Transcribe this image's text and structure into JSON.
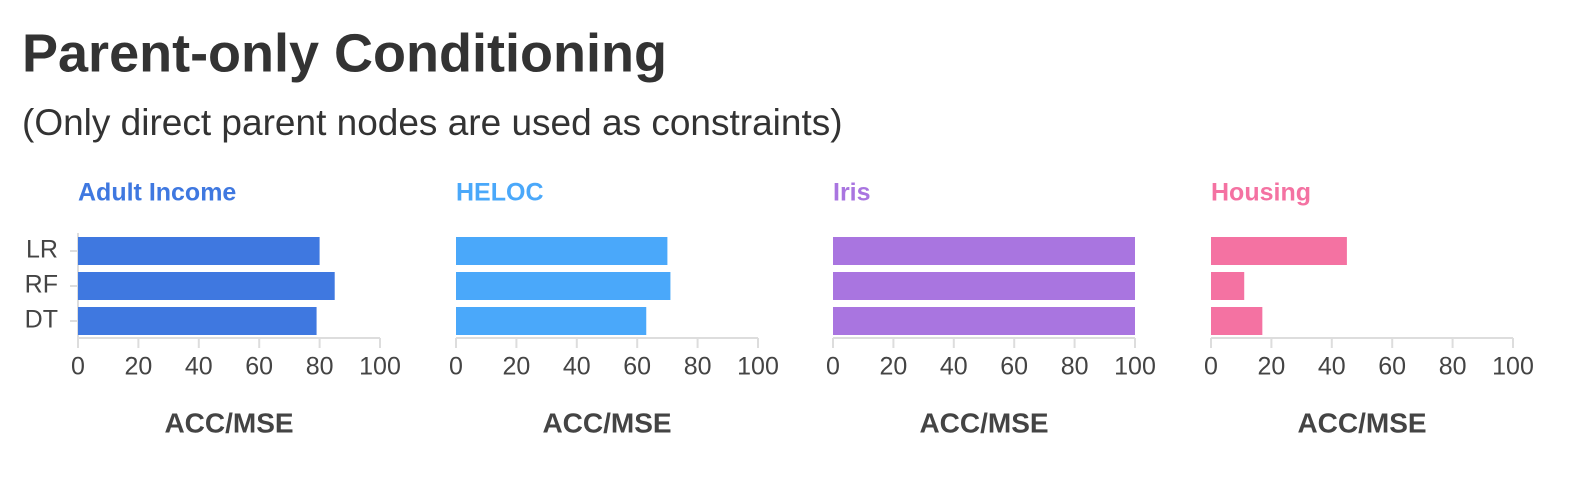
{
  "title": "Parent-only Conditioning",
  "subtitle": "(Only direct parent nodes are used as constraints)",
  "chart_data": [
    {
      "type": "hbar",
      "title": "Adult Income",
      "color": "#3f78e0",
      "categories": [
        "LR",
        "RF",
        "DT"
      ],
      "values": [
        80,
        85,
        79
      ],
      "xlim": [
        0,
        100
      ],
      "xticks": [
        0,
        20,
        40,
        60,
        80,
        100
      ],
      "xlabel": "ACC/MSE"
    },
    {
      "type": "hbar",
      "title": "HELOC",
      "color": "#4aa8fa",
      "values": [
        70,
        71,
        63
      ],
      "xlim": [
        0,
        100
      ],
      "xticks": [
        0,
        20,
        40,
        60,
        80,
        100
      ],
      "xlabel": "ACC/MSE"
    },
    {
      "type": "hbar",
      "title": "Iris",
      "color": "#a975e0",
      "values": [
        100,
        100,
        100
      ],
      "xlim": [
        0,
        100
      ],
      "xticks": [
        0,
        20,
        40,
        60,
        80,
        100
      ],
      "xlabel": "ACC/MSE"
    },
    {
      "type": "hbar",
      "title": "Housing",
      "color": "#f472a2",
      "values": [
        45,
        11,
        17
      ],
      "xlim": [
        0,
        100
      ],
      "xticks": [
        0,
        20,
        40,
        60,
        80,
        100
      ],
      "xlabel": "ACC/MSE"
    }
  ]
}
